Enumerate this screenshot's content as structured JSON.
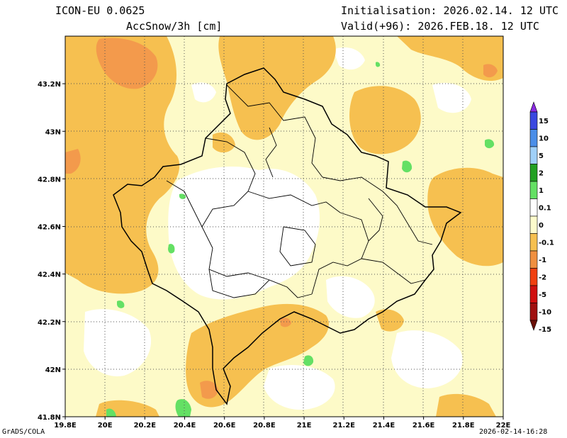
{
  "header": {
    "model": "ICON-EU 0.0625",
    "parameter": "AccSnow/3h [cm]",
    "initialisation": "Initialisation: 2026.02.14. 12 UTC",
    "valid": "Valid(+96): 2026.FEB.18. 12 UTC"
  },
  "footer": {
    "credit": "GrADS/COLA",
    "timestamp": "2026-02-14-16:28"
  },
  "map": {
    "lon_range": [
      19.8,
      22.0
    ],
    "lat_range": [
      41.8,
      43.4
    ],
    "lon_ticks": [
      "19.8E",
      "20E",
      "20.2E",
      "20.4E",
      "20.6E",
      "20.8E",
      "21E",
      "21.2E",
      "21.4E",
      "21.6E",
      "21.8E",
      "22E"
    ],
    "lat_ticks": [
      "41.8N",
      "42N",
      "42.2N",
      "42.4N",
      "42.6N",
      "42.8N",
      "43N",
      "43.2N"
    ],
    "grid": "dotted"
  },
  "colorbar": {
    "labels": [
      "15",
      "10",
      "5",
      "2",
      "1",
      "0.1",
      "0",
      "-0.1",
      "-1",
      "-2",
      "-5",
      "-10",
      "-15"
    ],
    "colors": [
      "#8a2be2",
      "#3a48e0",
      "#4a8ee8",
      "#a0d0f8",
      "#22a022",
      "#64e064",
      "#ffffff",
      "#fefccc",
      "#f6c050",
      "#f09040",
      "#f04010",
      "#d01010",
      "#a01010",
      "#6a1008"
    ]
  },
  "palette": {
    "pale": "#fdfac8",
    "light_orange": "#f6c050",
    "orange": "#f39a4c",
    "green": "#64e064",
    "white": "#ffffff"
  }
}
